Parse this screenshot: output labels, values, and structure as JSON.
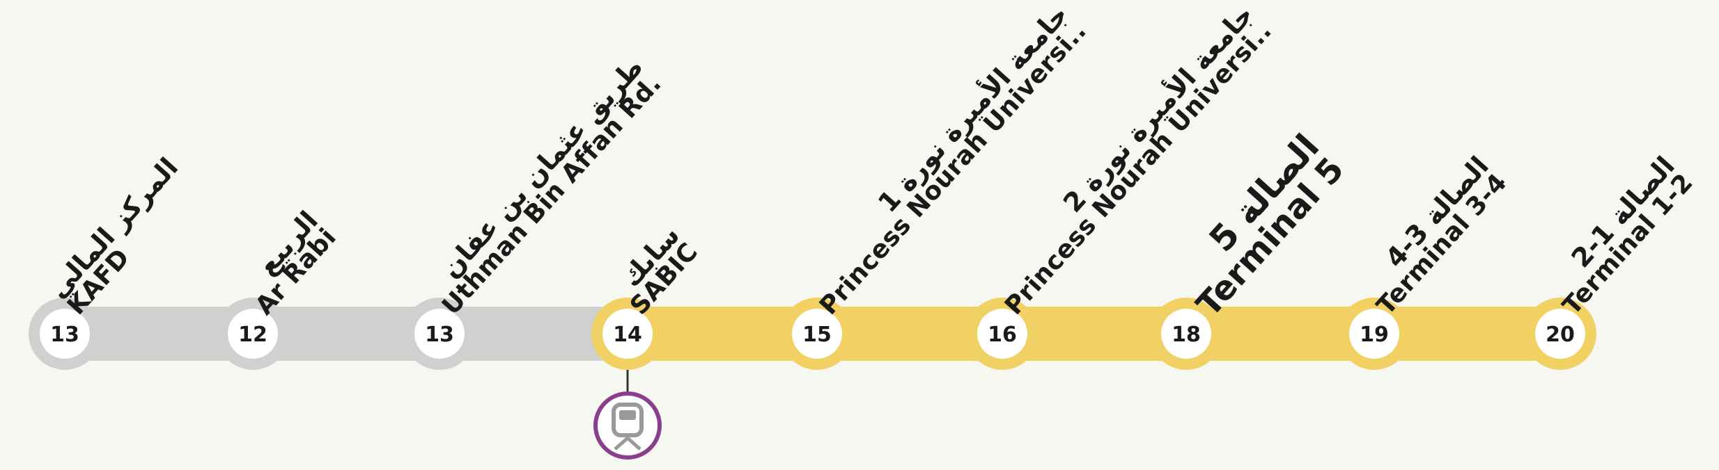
{
  "line": {
    "colors": {
      "inactive": "#d0d0d0",
      "active": "#f2d164",
      "metro_link": "#8a3f8e",
      "background": "#f7f7f2"
    },
    "active_from_index": 3,
    "stations": [
      {
        "number": "13",
        "name_ar": "المركز المالي",
        "name_en": "KAFD",
        "emphasis": false
      },
      {
        "number": "12",
        "name_ar": "الربيع",
        "name_en": "Ar Rabi",
        "emphasis": false
      },
      {
        "number": "13",
        "name_ar": "طريق عثمان بن عفان",
        "name_en": "Uthman Bin Affan Rd.",
        "emphasis": false
      },
      {
        "number": "14",
        "name_ar": "سابك",
        "name_en": "SABIC",
        "emphasis": false
      },
      {
        "number": "15",
        "name_ar": "جامعة الأميرة نورة 1",
        "name_en": "Princess Nourah Universi..",
        "emphasis": false
      },
      {
        "number": "16",
        "name_ar": "جامعة الأميرة نورة 2",
        "name_en": "Princess Nourah Universi..",
        "emphasis": false
      },
      {
        "number": "18",
        "name_ar": "الصالة 5",
        "name_en": "Terminal 5",
        "emphasis": true
      },
      {
        "number": "19",
        "name_ar": "الصالة 3-4",
        "name_en": "Terminal 3-4",
        "emphasis": false
      },
      {
        "number": "20",
        "name_ar": "الصالة 1-2",
        "name_en": "Terminal 1-2",
        "emphasis": false
      }
    ],
    "transfer": {
      "at_index": 3,
      "icon": "metro-train-icon"
    }
  }
}
